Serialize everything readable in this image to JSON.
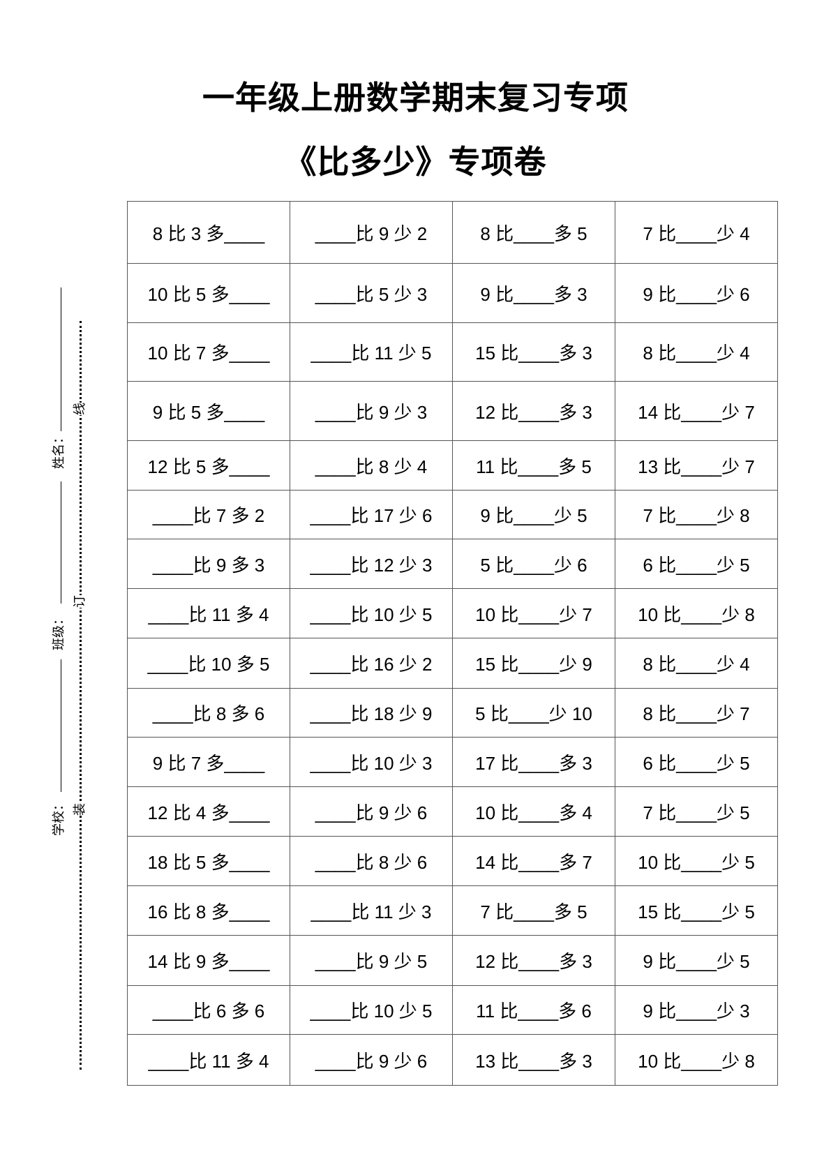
{
  "title": "一年级上册数学期末复习专项",
  "subtitle": "《比多少》专项卷",
  "binding": {
    "name_label": "姓名：",
    "class_label": "班级：",
    "school_label": "学校：",
    "mark_line": "线",
    "mark_ding": "订",
    "mark_zhuang": "装"
  },
  "rows": [
    [
      "8 比 3 多____",
      "____比 9 少 2",
      "8 比____多 5",
      "7 比____少 4"
    ],
    [
      "10 比 5 多____",
      "____比 5 少 3",
      "9 比____多 3",
      "9 比____少 6"
    ],
    [
      "10 比 7 多____",
      "____比 11 少 5",
      "15 比____多 3",
      "8 比____少 4"
    ],
    [
      "9 比 5 多____",
      "____比 9 少 3",
      "12 比____多 3",
      "14 比____少 7"
    ],
    [
      "12 比 5 多____",
      "____比 8 少 4",
      "11 比____多 5",
      "13 比____少 7"
    ],
    [
      "____比 7 多 2",
      "____比 17 少 6",
      "9 比____少 5",
      "7 比____少 8"
    ],
    [
      "____比 9 多 3",
      "____比 12 少 3",
      "5 比____少 6",
      "6 比____少 5"
    ],
    [
      "____比 11 多 4",
      "____比 10 少 5",
      "10 比____少 7",
      "10 比____少 8"
    ],
    [
      "____比 10 多 5",
      "____比 16 少 2",
      "15 比____少 9",
      "8 比____少 4"
    ],
    [
      "____比 8 多 6",
      "____比 18 少 9",
      "5 比____少 10",
      "8 比____少 7"
    ],
    [
      "9 比 7 多____",
      "____比 10 少 3",
      "17 比____多 3",
      "6 比____少 5"
    ],
    [
      "12 比 4 多____",
      "____比 9 少 6",
      "10 比____多 4",
      "7 比____少 5"
    ],
    [
      "18 比 5 多____",
      "____比 8 少 6",
      "14 比____多 7",
      "10 比____少 5"
    ],
    [
      "16 比 8 多____",
      "____比 11 少 3",
      "7 比____多 5",
      "15 比____少 5"
    ],
    [
      "14 比 9 多____",
      "____比 9 少 5",
      "12 比____多 3",
      "9 比____少 5"
    ],
    [
      "____比 6 多 6",
      "____比 10 少 5",
      "11 比____多 6",
      "9 比____少 3"
    ],
    [
      "____比 11 多 4",
      "____比 9 少 6",
      "13 比____多 3",
      "10 比____少 8"
    ]
  ]
}
